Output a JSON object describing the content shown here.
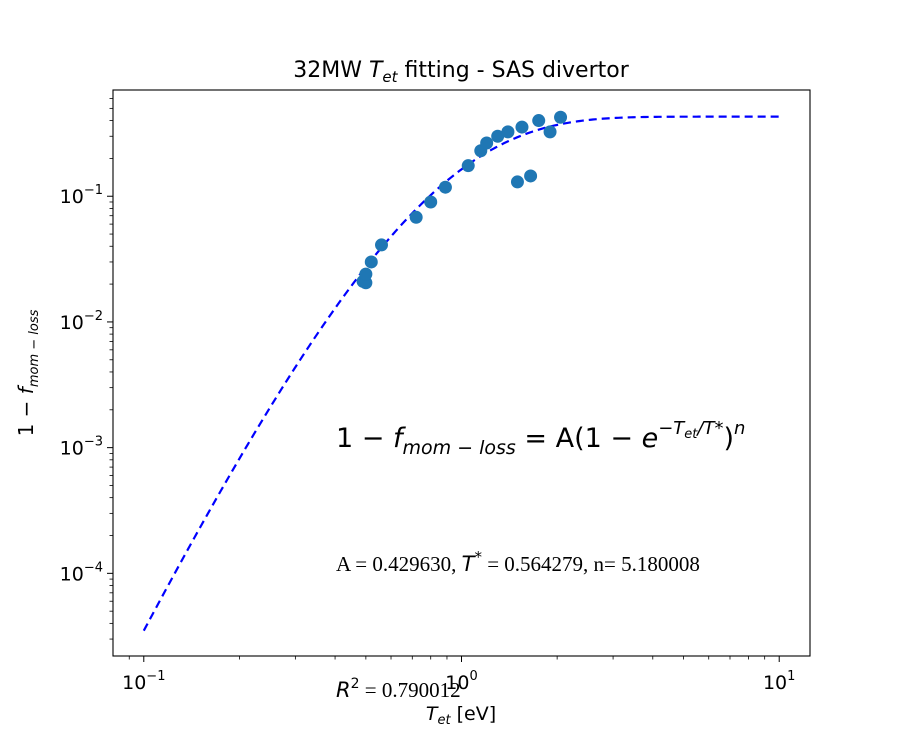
{
  "chart_data": {
    "type": "scatter",
    "title": {
      "pre": "32MW ",
      "sym": "T",
      "sub": "et",
      "post": " fitting - SAS divertor"
    },
    "xlabel": {
      "sym": "T",
      "sub": "et",
      "post": " [eV]"
    },
    "ylabel": {
      "pre": "1 − ",
      "sym": "f",
      "sub": "mom − loss"
    },
    "xscale": "log",
    "yscale": "log",
    "xlim": [
      0.08,
      12.5
    ],
    "ylim": [
      2.2e-05,
      0.7
    ],
    "x_ticks": [
      {
        "value": 0.1,
        "base": "10",
        "exp": "−1"
      },
      {
        "value": 1,
        "base": "10",
        "exp": "0"
      },
      {
        "value": 10,
        "base": "10",
        "exp": "1"
      }
    ],
    "y_ticks": [
      {
        "value": 0.0001,
        "base": "10",
        "exp": "−4"
      },
      {
        "value": 0.001,
        "base": "10",
        "exp": "−3"
      },
      {
        "value": 0.01,
        "base": "10",
        "exp": "−2"
      },
      {
        "value": 0.1,
        "base": "10",
        "exp": "−1"
      }
    ],
    "series": [
      {
        "kind": "scatter",
        "color": "#1f77b4",
        "points": [
          {
            "x": 0.49,
            "y": 0.021
          },
          {
            "x": 0.5,
            "y": 0.0205
          },
          {
            "x": 0.5,
            "y": 0.024
          },
          {
            "x": 0.52,
            "y": 0.03
          },
          {
            "x": 0.56,
            "y": 0.041
          },
          {
            "x": 0.72,
            "y": 0.068
          },
          {
            "x": 0.8,
            "y": 0.09
          },
          {
            "x": 0.89,
            "y": 0.118
          },
          {
            "x": 1.05,
            "y": 0.175
          },
          {
            "x": 1.15,
            "y": 0.23
          },
          {
            "x": 1.2,
            "y": 0.265
          },
          {
            "x": 1.3,
            "y": 0.3
          },
          {
            "x": 1.4,
            "y": 0.325
          },
          {
            "x": 1.5,
            "y": 0.13
          },
          {
            "x": 1.55,
            "y": 0.355
          },
          {
            "x": 1.65,
            "y": 0.145
          },
          {
            "x": 1.75,
            "y": 0.4
          },
          {
            "x": 1.9,
            "y": 0.325
          },
          {
            "x": 2.05,
            "y": 0.425
          }
        ]
      },
      {
        "kind": "fit-line",
        "color": "#0000ff",
        "style": "dashed",
        "A": 0.42963,
        "T_star": 0.564279,
        "n": 5.180008,
        "x_range": [
          0.1,
          10
        ]
      }
    ],
    "annotations": {
      "formula": {
        "lhs_pre": "1 − ",
        "f": "f",
        "f_sub": "mom − loss",
        "eq": " = A(1 − ",
        "e": "e",
        "exp": "−T",
        "exp_sub": "et",
        "exp_post": "/T*",
        "close": ")",
        "pow": "n"
      },
      "params": {
        "a_part": "A = 0.429630, ",
        "t_sym": "T",
        "t_sup": "*",
        "t_eq": " =  0.564279, n= 5.180008"
      },
      "r2": {
        "sym": "R",
        "sup": "2",
        "rest": " = 0.790012"
      }
    }
  }
}
